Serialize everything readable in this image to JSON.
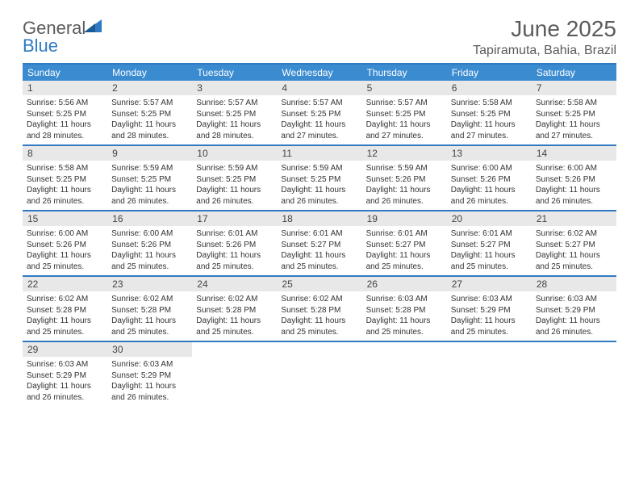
{
  "logo": {
    "word1": "General",
    "word2": "Blue"
  },
  "header": {
    "month_title": "June 2025",
    "location": "Tapiramuta, Bahia, Brazil"
  },
  "colors": {
    "brand_blue": "#2f7ac2",
    "header_blue": "#3b8bd1",
    "daynum_bg": "#e8e8e8",
    "text_gray": "#5b5b5b"
  },
  "days_of_week": [
    "Sunday",
    "Monday",
    "Tuesday",
    "Wednesday",
    "Thursday",
    "Friday",
    "Saturday"
  ],
  "weeks": [
    [
      {
        "n": "1",
        "sunrise": "Sunrise: 5:56 AM",
        "sunset": "Sunset: 5:25 PM",
        "daylight": "Daylight: 11 hours and 28 minutes."
      },
      {
        "n": "2",
        "sunrise": "Sunrise: 5:57 AM",
        "sunset": "Sunset: 5:25 PM",
        "daylight": "Daylight: 11 hours and 28 minutes."
      },
      {
        "n": "3",
        "sunrise": "Sunrise: 5:57 AM",
        "sunset": "Sunset: 5:25 PM",
        "daylight": "Daylight: 11 hours and 28 minutes."
      },
      {
        "n": "4",
        "sunrise": "Sunrise: 5:57 AM",
        "sunset": "Sunset: 5:25 PM",
        "daylight": "Daylight: 11 hours and 27 minutes."
      },
      {
        "n": "5",
        "sunrise": "Sunrise: 5:57 AM",
        "sunset": "Sunset: 5:25 PM",
        "daylight": "Daylight: 11 hours and 27 minutes."
      },
      {
        "n": "6",
        "sunrise": "Sunrise: 5:58 AM",
        "sunset": "Sunset: 5:25 PM",
        "daylight": "Daylight: 11 hours and 27 minutes."
      },
      {
        "n": "7",
        "sunrise": "Sunrise: 5:58 AM",
        "sunset": "Sunset: 5:25 PM",
        "daylight": "Daylight: 11 hours and 27 minutes."
      }
    ],
    [
      {
        "n": "8",
        "sunrise": "Sunrise: 5:58 AM",
        "sunset": "Sunset: 5:25 PM",
        "daylight": "Daylight: 11 hours and 26 minutes."
      },
      {
        "n": "9",
        "sunrise": "Sunrise: 5:59 AM",
        "sunset": "Sunset: 5:25 PM",
        "daylight": "Daylight: 11 hours and 26 minutes."
      },
      {
        "n": "10",
        "sunrise": "Sunrise: 5:59 AM",
        "sunset": "Sunset: 5:25 PM",
        "daylight": "Daylight: 11 hours and 26 minutes."
      },
      {
        "n": "11",
        "sunrise": "Sunrise: 5:59 AM",
        "sunset": "Sunset: 5:25 PM",
        "daylight": "Daylight: 11 hours and 26 minutes."
      },
      {
        "n": "12",
        "sunrise": "Sunrise: 5:59 AM",
        "sunset": "Sunset: 5:26 PM",
        "daylight": "Daylight: 11 hours and 26 minutes."
      },
      {
        "n": "13",
        "sunrise": "Sunrise: 6:00 AM",
        "sunset": "Sunset: 5:26 PM",
        "daylight": "Daylight: 11 hours and 26 minutes."
      },
      {
        "n": "14",
        "sunrise": "Sunrise: 6:00 AM",
        "sunset": "Sunset: 5:26 PM",
        "daylight": "Daylight: 11 hours and 26 minutes."
      }
    ],
    [
      {
        "n": "15",
        "sunrise": "Sunrise: 6:00 AM",
        "sunset": "Sunset: 5:26 PM",
        "daylight": "Daylight: 11 hours and 25 minutes."
      },
      {
        "n": "16",
        "sunrise": "Sunrise: 6:00 AM",
        "sunset": "Sunset: 5:26 PM",
        "daylight": "Daylight: 11 hours and 25 minutes."
      },
      {
        "n": "17",
        "sunrise": "Sunrise: 6:01 AM",
        "sunset": "Sunset: 5:26 PM",
        "daylight": "Daylight: 11 hours and 25 minutes."
      },
      {
        "n": "18",
        "sunrise": "Sunrise: 6:01 AM",
        "sunset": "Sunset: 5:27 PM",
        "daylight": "Daylight: 11 hours and 25 minutes."
      },
      {
        "n": "19",
        "sunrise": "Sunrise: 6:01 AM",
        "sunset": "Sunset: 5:27 PM",
        "daylight": "Daylight: 11 hours and 25 minutes."
      },
      {
        "n": "20",
        "sunrise": "Sunrise: 6:01 AM",
        "sunset": "Sunset: 5:27 PM",
        "daylight": "Daylight: 11 hours and 25 minutes."
      },
      {
        "n": "21",
        "sunrise": "Sunrise: 6:02 AM",
        "sunset": "Sunset: 5:27 PM",
        "daylight": "Daylight: 11 hours and 25 minutes."
      }
    ],
    [
      {
        "n": "22",
        "sunrise": "Sunrise: 6:02 AM",
        "sunset": "Sunset: 5:28 PM",
        "daylight": "Daylight: 11 hours and 25 minutes."
      },
      {
        "n": "23",
        "sunrise": "Sunrise: 6:02 AM",
        "sunset": "Sunset: 5:28 PM",
        "daylight": "Daylight: 11 hours and 25 minutes."
      },
      {
        "n": "24",
        "sunrise": "Sunrise: 6:02 AM",
        "sunset": "Sunset: 5:28 PM",
        "daylight": "Daylight: 11 hours and 25 minutes."
      },
      {
        "n": "25",
        "sunrise": "Sunrise: 6:02 AM",
        "sunset": "Sunset: 5:28 PM",
        "daylight": "Daylight: 11 hours and 25 minutes."
      },
      {
        "n": "26",
        "sunrise": "Sunrise: 6:03 AM",
        "sunset": "Sunset: 5:28 PM",
        "daylight": "Daylight: 11 hours and 25 minutes."
      },
      {
        "n": "27",
        "sunrise": "Sunrise: 6:03 AM",
        "sunset": "Sunset: 5:29 PM",
        "daylight": "Daylight: 11 hours and 25 minutes."
      },
      {
        "n": "28",
        "sunrise": "Sunrise: 6:03 AM",
        "sunset": "Sunset: 5:29 PM",
        "daylight": "Daylight: 11 hours and 26 minutes."
      }
    ],
    [
      {
        "n": "29",
        "sunrise": "Sunrise: 6:03 AM",
        "sunset": "Sunset: 5:29 PM",
        "daylight": "Daylight: 11 hours and 26 minutes."
      },
      {
        "n": "30",
        "sunrise": "Sunrise: 6:03 AM",
        "sunset": "Sunset: 5:29 PM",
        "daylight": "Daylight: 11 hours and 26 minutes."
      },
      {
        "empty": true
      },
      {
        "empty": true
      },
      {
        "empty": true
      },
      {
        "empty": true
      },
      {
        "empty": true
      }
    ]
  ]
}
